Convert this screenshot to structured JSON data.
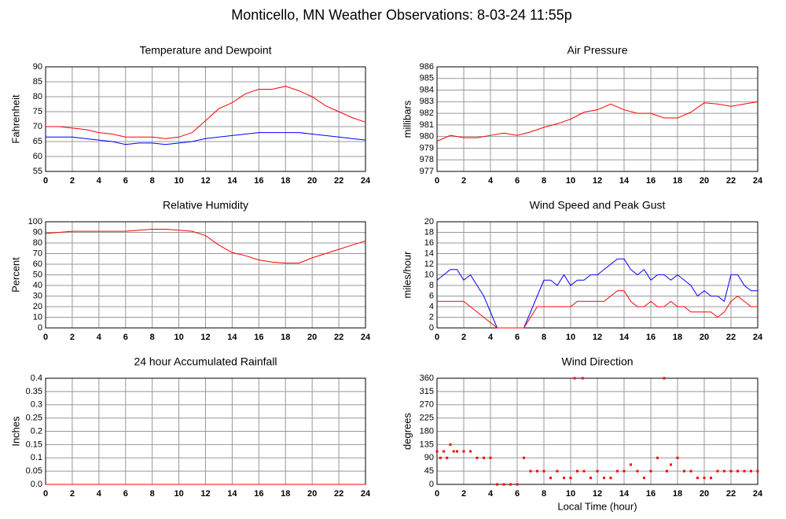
{
  "title": "Monticello, MN Weather Observations: 8-03-24 11:55p",
  "chart_data": [
    {
      "type": "line",
      "title": "Temperature and Dewpoint",
      "ylabel": "Fahrenheit",
      "x": [
        0,
        1,
        2,
        3,
        4,
        5,
        6,
        7,
        8,
        9,
        10,
        11,
        12,
        13,
        14,
        15,
        16,
        17,
        18,
        19,
        20,
        21,
        22,
        23,
        24
      ],
      "series": [
        {
          "color": "#ff0000",
          "values": [
            70,
            70,
            69.5,
            69,
            68,
            67.5,
            66.5,
            66.5,
            66.5,
            66,
            66.5,
            68,
            72,
            76,
            78,
            81,
            82.5,
            82.5,
            83.5,
            82,
            80,
            77,
            75,
            73,
            71.5
          ]
        },
        {
          "color": "#0000ff",
          "values": [
            66.5,
            66.5,
            66.5,
            66,
            65.5,
            65,
            64,
            64.5,
            64.5,
            64,
            64.5,
            65,
            66,
            66.5,
            67,
            67.5,
            68,
            68,
            68,
            68,
            67.5,
            67,
            66.5,
            66,
            65.5
          ]
        }
      ],
      "xlim": [
        0,
        24
      ],
      "xticks": [
        0,
        2,
        4,
        6,
        8,
        10,
        12,
        14,
        16,
        18,
        20,
        22,
        24
      ],
      "ylim": [
        55,
        90
      ],
      "yticks": [
        55,
        60,
        65,
        70,
        75,
        80,
        85,
        90
      ],
      "grid": true
    },
    {
      "type": "line",
      "title": "Air Pressure",
      "ylabel": "millibars",
      "x": [
        0,
        1,
        2,
        3,
        4,
        5,
        6,
        7,
        8,
        9,
        10,
        11,
        12,
        13,
        14,
        15,
        16,
        17,
        18,
        19,
        20,
        21,
        22,
        23,
        24
      ],
      "series": [
        {
          "color": "#ff0000",
          "values": [
            979.6,
            980.1,
            979.9,
            979.9,
            980.1,
            980.3,
            980.1,
            980.4,
            980.8,
            981.1,
            981.5,
            982.1,
            982.3,
            982.8,
            982.3,
            982.0,
            982.0,
            981.6,
            981.6,
            982.1,
            982.9,
            982.8,
            982.6,
            982.8,
            983.0
          ]
        }
      ],
      "xlim": [
        0,
        24
      ],
      "xticks": [
        0,
        2,
        4,
        6,
        8,
        10,
        12,
        14,
        16,
        18,
        20,
        22,
        24
      ],
      "ylim": [
        977,
        986
      ],
      "yticks": [
        977,
        978,
        979,
        980,
        981,
        982,
        983,
        984,
        985,
        986
      ],
      "grid": true
    },
    {
      "type": "line",
      "title": "Relative Humidity",
      "ylabel": "Percent",
      "x": [
        0,
        1,
        2,
        3,
        4,
        5,
        6,
        7,
        8,
        9,
        10,
        11,
        12,
        13,
        14,
        15,
        16,
        17,
        18,
        19,
        20,
        21,
        22,
        23,
        24
      ],
      "series": [
        {
          "color": "#ff0000",
          "values": [
            89,
            90,
            91,
            91,
            91,
            91,
            91,
            92,
            93,
            93,
            92,
            91,
            87,
            78,
            71,
            68,
            64,
            62,
            61,
            61,
            66,
            70,
            74,
            78,
            82
          ]
        }
      ],
      "xlim": [
        0,
        24
      ],
      "xticks": [
        0,
        2,
        4,
        6,
        8,
        10,
        12,
        14,
        16,
        18,
        20,
        22,
        24
      ],
      "ylim": [
        0,
        100
      ],
      "yticks": [
        0,
        10,
        20,
        30,
        40,
        50,
        60,
        70,
        80,
        90,
        100
      ],
      "grid": true
    },
    {
      "type": "line",
      "title": "Wind Speed and Peak Gust",
      "ylabel": "miles/hour",
      "x": [
        0,
        0.5,
        1,
        1.5,
        2,
        2.5,
        3,
        3.5,
        4,
        4.5,
        5,
        5.5,
        6,
        6.5,
        7,
        7.5,
        8,
        8.5,
        9,
        9.5,
        10,
        10.5,
        11,
        11.5,
        12,
        12.5,
        13,
        13.5,
        14,
        14.5,
        15,
        15.5,
        16,
        16.5,
        17,
        17.5,
        18,
        18.5,
        19,
        19.5,
        20,
        20.5,
        21,
        21.5,
        22,
        22.5,
        23,
        23.5,
        24
      ],
      "series": [
        {
          "color": "#0000ff",
          "values": [
            9,
            10,
            11,
            11,
            9,
            10,
            8,
            6,
            3,
            0,
            0,
            0,
            0,
            0,
            3,
            6,
            9,
            9,
            8,
            10,
            8,
            9,
            9,
            10,
            10,
            11,
            12,
            13,
            13,
            11,
            10,
            11,
            9,
            10,
            10,
            9,
            10,
            9,
            8,
            6,
            7,
            6,
            6,
            5,
            10,
            10,
            8,
            7,
            7
          ]
        },
        {
          "color": "#ff0000",
          "values": [
            5,
            5,
            5,
            5,
            5,
            4,
            3,
            2,
            1,
            0,
            0,
            0,
            0,
            0,
            2,
            4,
            4,
            4,
            4,
            4,
            4,
            5,
            5,
            5,
            5,
            5,
            6,
            7,
            7,
            5,
            4,
            4,
            5,
            4,
            4,
            5,
            4,
            4,
            3,
            3,
            3,
            3,
            2,
            3,
            5,
            6,
            5,
            4,
            4
          ]
        }
      ],
      "xlim": [
        0,
        24
      ],
      "xticks": [
        0,
        2,
        4,
        6,
        8,
        10,
        12,
        14,
        16,
        18,
        20,
        22,
        24
      ],
      "ylim": [
        0,
        20
      ],
      "yticks": [
        0,
        2,
        4,
        6,
        8,
        10,
        12,
        14,
        16,
        18,
        20
      ],
      "grid": true
    },
    {
      "type": "line",
      "title": "24 hour Accumulated Rainfall",
      "ylabel": "Inches",
      "x": [
        0,
        24
      ],
      "series": [
        {
          "color": "#ff0000",
          "values": [
            0,
            0
          ]
        }
      ],
      "xlim": [
        0,
        24
      ],
      "xticks": [
        0,
        2,
        4,
        6,
        8,
        10,
        12,
        14,
        16,
        18,
        20,
        22,
        24
      ],
      "ylim": [
        0,
        0.4
      ],
      "yticks": [
        {
          "value": 0,
          "label": "0.0"
        },
        0.05,
        0.1,
        0.15,
        0.2,
        0.25,
        0.3,
        0.35,
        0.4
      ],
      "grid": true
    },
    {
      "type": "scatter",
      "title": "Wind Direction",
      "ylabel": "degrees",
      "xlabel": "Local Time (hour)",
      "x": [
        0,
        0.25,
        0.5,
        0.75,
        1,
        1.25,
        1.5,
        2,
        2.5,
        3,
        3.5,
        4,
        4.5,
        5,
        5.5,
        6,
        6.5,
        7,
        7.5,
        8,
        8.5,
        9,
        9.5,
        10,
        10.3,
        10.5,
        10.9,
        11,
        11.5,
        12,
        12.5,
        13,
        13.5,
        14,
        14.5,
        15,
        15.5,
        16,
        16.5,
        17,
        17.2,
        17.5,
        18,
        18.5,
        19,
        19.5,
        20,
        20.5,
        21,
        21.5,
        22,
        22.5,
        23,
        23.5,
        24
      ],
      "color": "#ff0000",
      "values": [
        112,
        90,
        112,
        90,
        135,
        112,
        112,
        112,
        112,
        90,
        90,
        90,
        0,
        0,
        0,
        0,
        90,
        45,
        45,
        45,
        22,
        45,
        22,
        22,
        360,
        45,
        360,
        45,
        22,
        45,
        22,
        22,
        45,
        45,
        67,
        45,
        22,
        45,
        90,
        360,
        45,
        67,
        90,
        45,
        45,
        22,
        22,
        22,
        45,
        45,
        45,
        45,
        45,
        45,
        45
      ],
      "xlim": [
        0,
        24
      ],
      "xticks": [
        0,
        2,
        4,
        6,
        8,
        10,
        12,
        14,
        16,
        18,
        20,
        22,
        24
      ],
      "ylim": [
        0,
        360
      ],
      "yticks": [
        0,
        45,
        90,
        135,
        180,
        225,
        270,
        315,
        360
      ],
      "grid": true
    }
  ]
}
